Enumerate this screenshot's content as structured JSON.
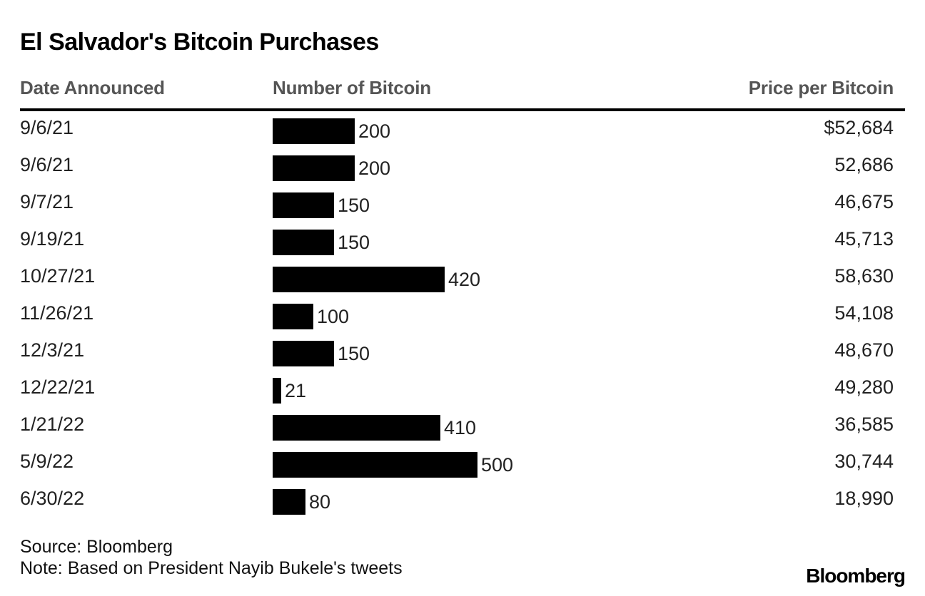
{
  "title": "El Salvador's Bitcoin Purchases",
  "chart_data": {
    "type": "table",
    "columns": [
      "Date Announced",
      "Number of Bitcoin",
      "Price per Bitcoin"
    ],
    "rows": [
      {
        "date": "9/6/21",
        "count": 200,
        "count_label": "200",
        "price": "$52,684"
      },
      {
        "date": "9/6/21",
        "count": 200,
        "count_label": "200",
        "price": "52,686"
      },
      {
        "date": "9/7/21",
        "count": 150,
        "count_label": "150",
        "price": "46,675"
      },
      {
        "date": "9/19/21",
        "count": 150,
        "count_label": "150",
        "price": "45,713"
      },
      {
        "date": "10/27/21",
        "count": 420,
        "count_label": "420",
        "price": "58,630"
      },
      {
        "date": "11/26/21",
        "count": 100,
        "count_label": "100",
        "price": "54,108"
      },
      {
        "date": "12/3/21",
        "count": 150,
        "count_label": "150",
        "price": "48,670"
      },
      {
        "date": "12/22/21",
        "count": 21,
        "count_label": "21",
        "price": "49,280"
      },
      {
        "date": "1/21/22",
        "count": 410,
        "count_label": "410",
        "price": "36,585"
      },
      {
        "date": "5/9/22",
        "count": 500,
        "count_label": "500",
        "price": "30,744"
      },
      {
        "date": "6/30/22",
        "count": 80,
        "count_label": "80",
        "price": "18,990"
      }
    ],
    "bar_color": "#000000",
    "count_max": 500
  },
  "footer": {
    "source": "Source: Bloomberg",
    "note": "Note: Based on President Nayib Bukele's tweets",
    "logo": "Bloomberg"
  }
}
